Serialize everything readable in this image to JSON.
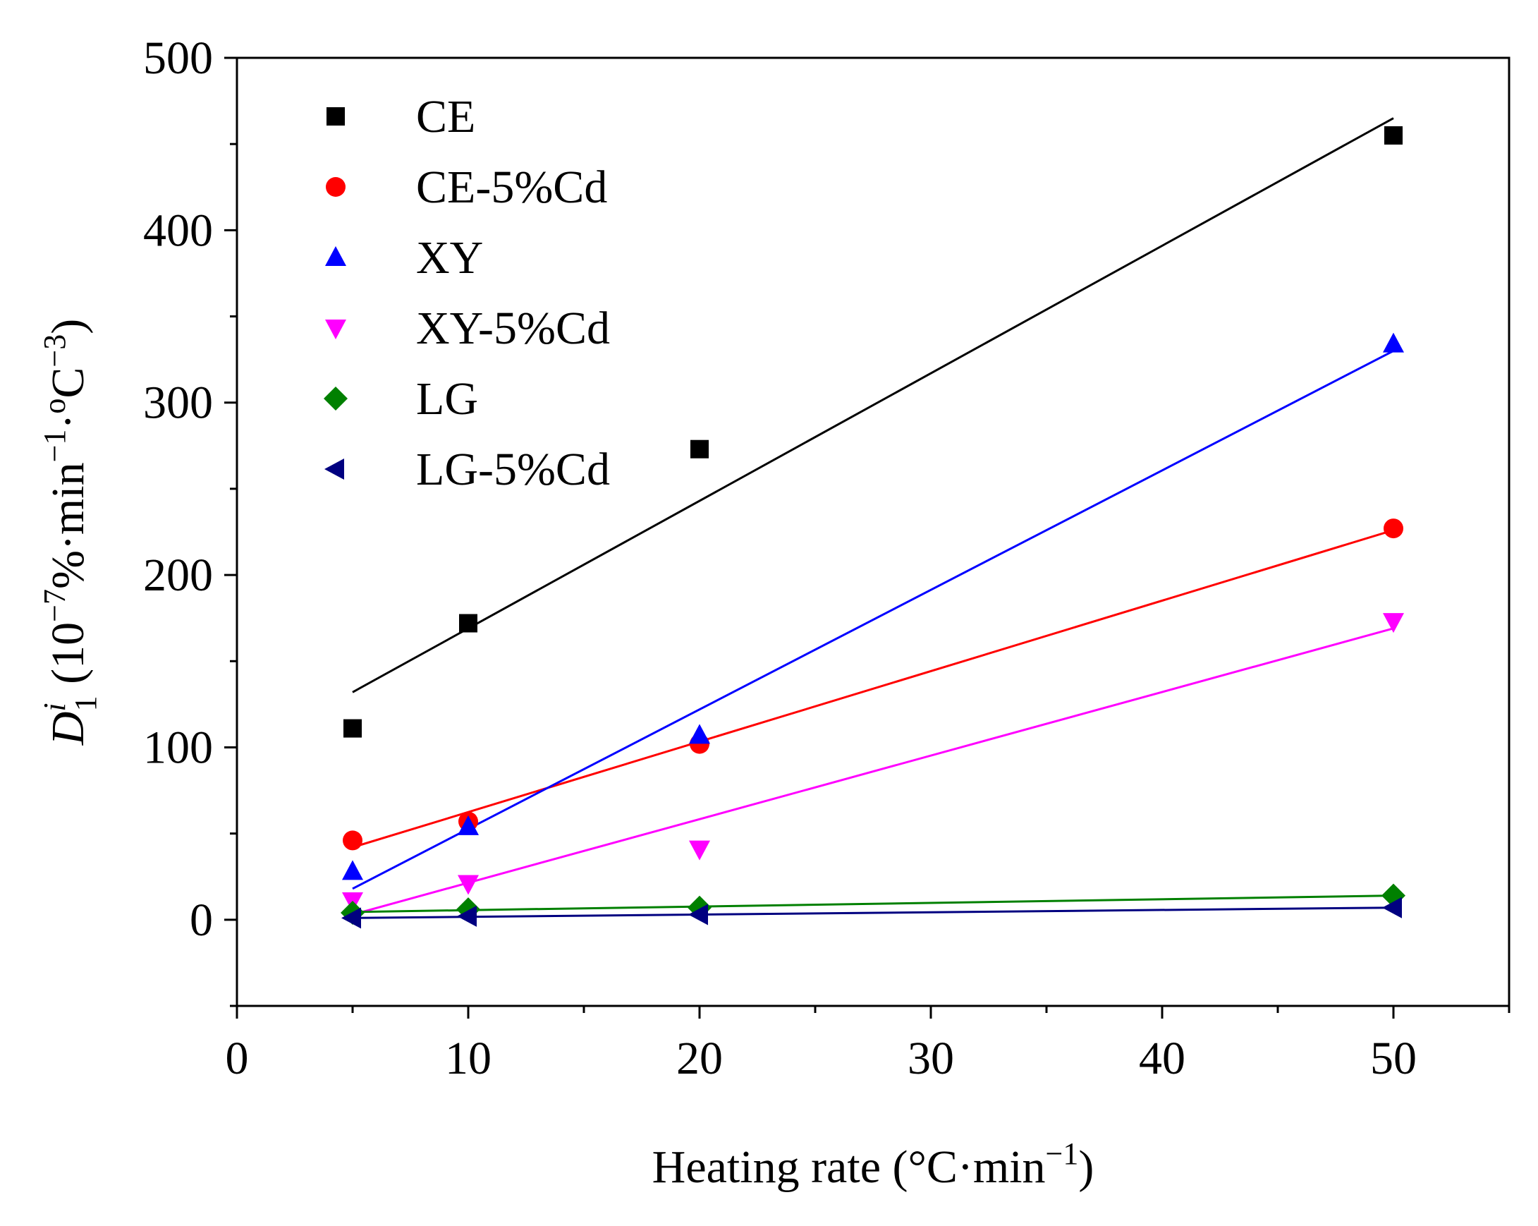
{
  "chart_data": {
    "type": "scatter",
    "title": "",
    "xlabel": {
      "main": "Heating rate (°C·min",
      "sup": "−1",
      "close": ")"
    },
    "ylabel": {
      "symbol": "D",
      "symbol_sup": "i",
      "symbol_sub": "1",
      "open": " (10",
      "exp1": "−7",
      "mid": "%·min",
      "exp2": "−1",
      "dot": "·",
      "deg": "o",
      "unit": "C",
      "exp3": "−3",
      "close": ")"
    },
    "xlim": [
      0,
      55
    ],
    "ylim": [
      -50,
      500
    ],
    "x_ticks": [
      0,
      10,
      20,
      30,
      40,
      50
    ],
    "x_tick_labels": [
      "0",
      "10",
      "20",
      "30",
      "40",
      "50"
    ],
    "y_ticks": [
      0,
      100,
      200,
      300,
      400,
      500
    ],
    "y_tick_labels": [
      "0",
      "100",
      "200",
      "300",
      "400",
      "500"
    ],
    "x_minor_step": 5,
    "y_minor_step": 50,
    "grid": false,
    "legend_position": "top-left",
    "x": [
      5,
      10,
      20,
      50
    ],
    "series": [
      {
        "name": "CE",
        "marker": "square",
        "color": "#000000",
        "values": [
          111,
          172,
          273,
          455
        ],
        "fit": [
          [
            5,
            132
          ],
          [
            50,
            465
          ]
        ]
      },
      {
        "name": "CE-5%Cd",
        "marker": "circle",
        "color": "#ff0000",
        "values": [
          46,
          57,
          102,
          227
        ],
        "fit": [
          [
            5,
            42
          ],
          [
            50,
            226
          ]
        ]
      },
      {
        "name": "XY",
        "marker": "triangle-up",
        "color": "#0000ff",
        "values": [
          28,
          54,
          107,
          334
        ],
        "fit": [
          [
            5,
            18
          ],
          [
            50,
            330
          ]
        ]
      },
      {
        "name": "XY-5%Cd",
        "marker": "triangle-down",
        "color": "#ff00ff",
        "values": [
          11,
          21,
          41,
          173
        ],
        "fit": [
          [
            5,
            3
          ],
          [
            50,
            169
          ]
        ]
      },
      {
        "name": "LG",
        "marker": "diamond",
        "color": "#008000",
        "values": [
          4,
          6,
          7,
          14
        ],
        "fit": [
          [
            5,
            4.5
          ],
          [
            50,
            14
          ]
        ]
      },
      {
        "name": "LG-5%Cd",
        "marker": "triangle-left",
        "color": "#000080",
        "values": [
          1,
          2,
          3,
          7
        ],
        "fit": [
          [
            5,
            1
          ],
          [
            50,
            7
          ]
        ]
      }
    ]
  }
}
